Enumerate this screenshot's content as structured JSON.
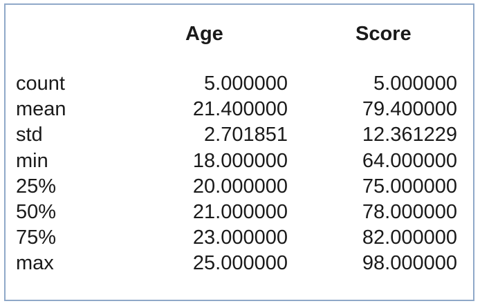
{
  "table": {
    "columns": [
      "Age",
      "Score"
    ],
    "rows": [
      {
        "label": "count",
        "age": "5.000000",
        "score": "5.000000"
      },
      {
        "label": "mean",
        "age": "21.400000",
        "score": "79.400000"
      },
      {
        "label": "std",
        "age": "2.701851",
        "score": "12.361229"
      },
      {
        "label": "min",
        "age": "18.000000",
        "score": "64.000000"
      },
      {
        "label": "25%",
        "age": "20.000000",
        "score": "75.000000"
      },
      {
        "label": "50%",
        "age": "21.000000",
        "score": "78.000000"
      },
      {
        "label": "75%",
        "age": "23.000000",
        "score": "82.000000"
      },
      {
        "label": "max",
        "age": "25.000000",
        "score": "98.000000"
      }
    ]
  },
  "colors": {
    "border": "#8fa8c8",
    "text": "#1a1a1a",
    "background": "#ffffff"
  }
}
